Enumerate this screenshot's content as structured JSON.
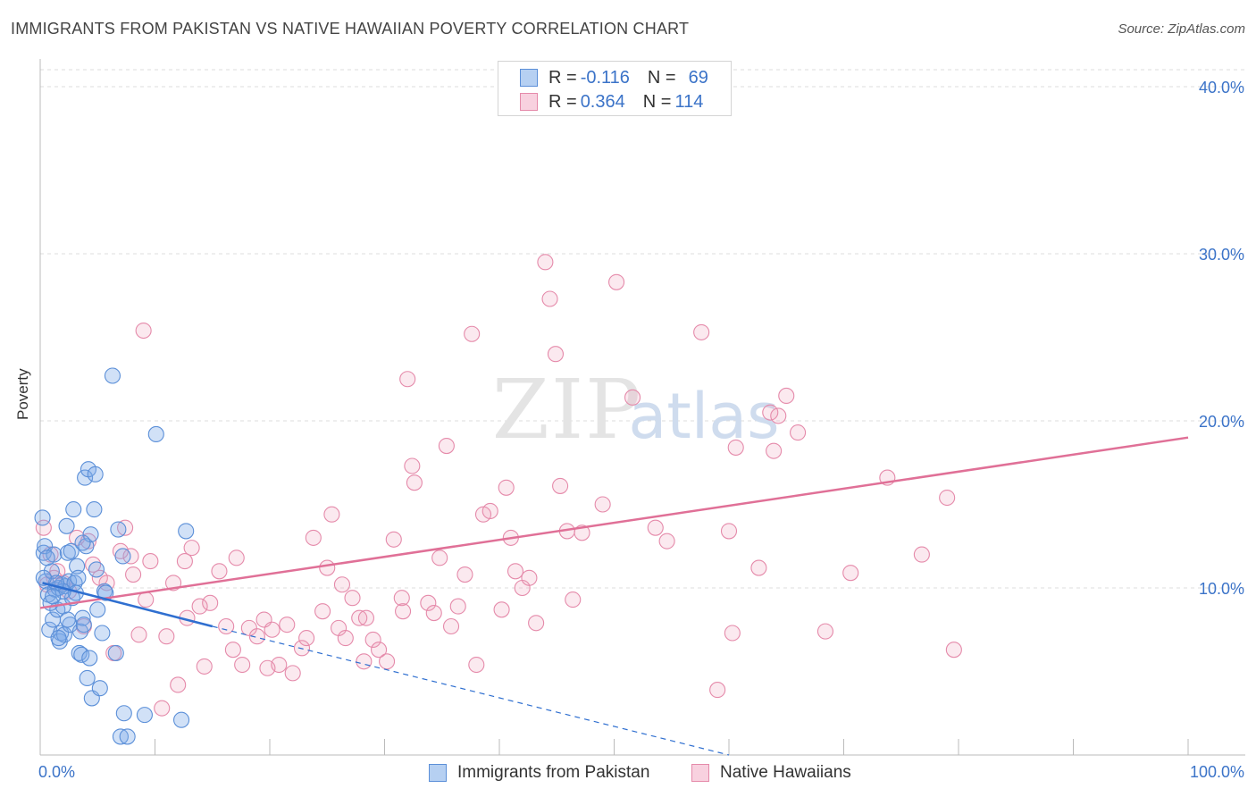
{
  "header": {
    "title": "IMMIGRANTS FROM PAKISTAN VS NATIVE HAWAIIAN POVERTY CORRELATION CHART",
    "source": "Source: ZipAtlas.com"
  },
  "watermark": {
    "zip": "ZIP",
    "atlas": "atlas"
  },
  "legend": {
    "series1": {
      "r_label": "R =",
      "r_value": "-0.116",
      "n_label": "N =",
      "n_value": "69",
      "color": "#7aaae8"
    },
    "series2": {
      "r_label": "R =",
      "r_value": "0.364",
      "n_label": "N =",
      "n_value": "114",
      "color": "#ef9ab8"
    }
  },
  "bottom_legend": {
    "series1_label": "Immigrants from Pakistan",
    "series2_label": "Native Hawaiians"
  },
  "colors": {
    "blue_fill": "rgba(122,170,232,0.35)",
    "blue_stroke": "#5b8fd8",
    "blue_line": "#2f6fd0",
    "pink_fill": "rgba(239,154,184,0.22)",
    "pink_stroke": "#e58aaa",
    "pink_line": "#e07097",
    "axis_text": "#3b73c8",
    "grid": "#dddddd"
  },
  "chart_data": {
    "type": "scatter",
    "title": "IMMIGRANTS FROM PAKISTAN VS NATIVE HAWAIIAN POVERTY CORRELATION CHART",
    "xlabel": "",
    "ylabel": "Poverty",
    "xlim": [
      0,
      100
    ],
    "ylim": [
      0,
      40
    ],
    "x_tick_labels": [
      "0.0%",
      "100.0%"
    ],
    "y_ticks": [
      10,
      20,
      30,
      40
    ],
    "y_tick_labels": [
      "10.0%",
      "20.0%",
      "30.0%",
      "40.0%"
    ],
    "grid": true,
    "series": [
      {
        "name": "Immigrants from Pakistan",
        "r": -0.116,
        "n": 69,
        "trend": {
          "x0": 0.2,
          "y0": 10.3,
          "x1": 15,
          "y1": 7.7,
          "dash_to_x": 60,
          "dash_to_y": 0
        },
        "points": [
          [
            0.2,
            14.2
          ],
          [
            0.3,
            12.1
          ],
          [
            0.4,
            12.5
          ],
          [
            0.5,
            10.4
          ],
          [
            0.7,
            9.6
          ],
          [
            0.8,
            7.5
          ],
          [
            1.0,
            11.0
          ],
          [
            1.1,
            8.1
          ],
          [
            1.2,
            12.0
          ],
          [
            1.3,
            9.9
          ],
          [
            1.5,
            8.7
          ],
          [
            1.6,
            10.0
          ],
          [
            1.7,
            6.8
          ],
          [
            1.8,
            7.3
          ],
          [
            1.9,
            10.2
          ],
          [
            2.0,
            8.9
          ],
          [
            2.1,
            7.2
          ],
          [
            2.2,
            10.1
          ],
          [
            2.3,
            13.7
          ],
          [
            2.4,
            12.1
          ],
          [
            2.5,
            10.4
          ],
          [
            2.6,
            7.8
          ],
          [
            2.7,
            12.2
          ],
          [
            2.8,
            9.4
          ],
          [
            2.9,
            14.7
          ],
          [
            3.0,
            10.3
          ],
          [
            3.2,
            11.3
          ],
          [
            3.3,
            10.6
          ],
          [
            3.4,
            6.1
          ],
          [
            3.5,
            7.4
          ],
          [
            3.6,
            6.0
          ],
          [
            3.7,
            8.2
          ],
          [
            3.8,
            7.8
          ],
          [
            3.9,
            16.6
          ],
          [
            4.0,
            12.5
          ],
          [
            4.1,
            4.6
          ],
          [
            4.2,
            17.1
          ],
          [
            4.3,
            5.8
          ],
          [
            4.4,
            13.2
          ],
          [
            4.5,
            3.4
          ],
          [
            4.7,
            14.7
          ],
          [
            4.8,
            16.8
          ],
          [
            5.0,
            8.7
          ],
          [
            5.2,
            4.0
          ],
          [
            5.4,
            7.3
          ],
          [
            5.6,
            9.8
          ],
          [
            6.3,
            22.7
          ],
          [
            6.6,
            6.1
          ],
          [
            6.8,
            13.5
          ],
          [
            7.0,
            1.1
          ],
          [
            7.3,
            2.5
          ],
          [
            7.6,
            1.1
          ],
          [
            9.1,
            2.4
          ],
          [
            10.1,
            19.2
          ],
          [
            12.7,
            13.4
          ],
          [
            12.3,
            2.1
          ],
          [
            7.2,
            11.9
          ],
          [
            3.1,
            9.7
          ],
          [
            2.0,
            9.8
          ],
          [
            1.4,
            10.3
          ],
          [
            0.9,
            9.1
          ],
          [
            0.6,
            11.8
          ],
          [
            1.1,
            9.5
          ],
          [
            2.4,
            8.1
          ],
          [
            3.7,
            12.7
          ],
          [
            4.9,
            11.1
          ],
          [
            5.7,
            9.7
          ],
          [
            0.3,
            10.6
          ],
          [
            1.6,
            7.0
          ]
        ]
      },
      {
        "name": "Native Hawaiians",
        "r": 0.364,
        "n": 114,
        "trend": {
          "x0": 0,
          "y0": 8.8,
          "x1": 100,
          "y1": 19.0
        },
        "points": [
          [
            0.3,
            13.6
          ],
          [
            0.6,
            10.2
          ],
          [
            0.9,
            12.0
          ],
          [
            1.2,
            10.6
          ],
          [
            1.5,
            11.0
          ],
          [
            2.0,
            10.3
          ],
          [
            2.5,
            9.8
          ],
          [
            3.2,
            13.0
          ],
          [
            3.8,
            7.7
          ],
          [
            4.2,
            12.8
          ],
          [
            4.6,
            11.4
          ],
          [
            5.2,
            10.6
          ],
          [
            5.8,
            10.3
          ],
          [
            6.4,
            6.1
          ],
          [
            7.0,
            12.2
          ],
          [
            7.4,
            13.6
          ],
          [
            7.9,
            11.9
          ],
          [
            8.1,
            10.8
          ],
          [
            8.6,
            7.2
          ],
          [
            9.2,
            9.3
          ],
          [
            9.6,
            11.6
          ],
          [
            9.0,
            25.4
          ],
          [
            10.6,
            2.8
          ],
          [
            11.0,
            7.1
          ],
          [
            11.6,
            10.3
          ],
          [
            12.0,
            4.2
          ],
          [
            12.6,
            11.6
          ],
          [
            12.8,
            8.2
          ],
          [
            13.2,
            12.4
          ],
          [
            13.9,
            8.9
          ],
          [
            14.3,
            5.3
          ],
          [
            14.8,
            9.1
          ],
          [
            15.6,
            11.0
          ],
          [
            16.2,
            7.7
          ],
          [
            16.8,
            6.3
          ],
          [
            17.1,
            11.8
          ],
          [
            17.6,
            5.4
          ],
          [
            18.2,
            7.6
          ],
          [
            18.9,
            7.1
          ],
          [
            19.5,
            8.1
          ],
          [
            19.8,
            5.2
          ],
          [
            20.2,
            7.5
          ],
          [
            20.8,
            5.4
          ],
          [
            21.5,
            7.8
          ],
          [
            22.0,
            4.9
          ],
          [
            22.8,
            6.4
          ],
          [
            23.2,
            7.0
          ],
          [
            23.8,
            13.0
          ],
          [
            24.6,
            8.6
          ],
          [
            25.0,
            11.2
          ],
          [
            25.4,
            14.4
          ],
          [
            26.0,
            7.6
          ],
          [
            26.3,
            10.2
          ],
          [
            26.6,
            7.0
          ],
          [
            27.2,
            9.4
          ],
          [
            27.8,
            8.2
          ],
          [
            28.2,
            5.6
          ],
          [
            28.4,
            8.2
          ],
          [
            29.0,
            6.9
          ],
          [
            29.5,
            6.3
          ],
          [
            30.2,
            5.6
          ],
          [
            30.8,
            12.9
          ],
          [
            31.5,
            9.4
          ],
          [
            31.6,
            8.6
          ],
          [
            32.0,
            22.5
          ],
          [
            32.4,
            17.3
          ],
          [
            32.6,
            16.3
          ],
          [
            33.8,
            9.1
          ],
          [
            34.3,
            8.5
          ],
          [
            34.8,
            11.8
          ],
          [
            35.4,
            18.5
          ],
          [
            35.8,
            7.7
          ],
          [
            36.4,
            8.9
          ],
          [
            37.0,
            10.8
          ],
          [
            37.6,
            25.2
          ],
          [
            38.0,
            5.4
          ],
          [
            38.6,
            14.4
          ],
          [
            39.2,
            14.6
          ],
          [
            40.2,
            8.7
          ],
          [
            40.6,
            16.0
          ],
          [
            41.0,
            13.0
          ],
          [
            41.4,
            11.0
          ],
          [
            42.0,
            10.0
          ],
          [
            42.6,
            10.6
          ],
          [
            43.2,
            7.9
          ],
          [
            44.0,
            29.5
          ],
          [
            44.4,
            27.3
          ],
          [
            44.9,
            24.0
          ],
          [
            45.3,
            16.1
          ],
          [
            45.9,
            13.4
          ],
          [
            46.4,
            9.3
          ],
          [
            47.2,
            13.3
          ],
          [
            49.0,
            15.0
          ],
          [
            50.2,
            28.3
          ],
          [
            51.6,
            21.4
          ],
          [
            53.6,
            13.6
          ],
          [
            54.6,
            12.8
          ],
          [
            57.6,
            25.3
          ],
          [
            59.0,
            3.9
          ],
          [
            60.0,
            13.4
          ],
          [
            60.3,
            7.3
          ],
          [
            60.6,
            18.4
          ],
          [
            62.6,
            11.2
          ],
          [
            63.6,
            20.5
          ],
          [
            63.9,
            18.2
          ],
          [
            64.3,
            20.3
          ],
          [
            65.0,
            21.5
          ],
          [
            66.0,
            19.3
          ],
          [
            68.4,
            7.4
          ],
          [
            70.6,
            10.9
          ],
          [
            73.8,
            16.6
          ],
          [
            76.8,
            12.0
          ],
          [
            79.0,
            15.4
          ],
          [
            79.6,
            6.3
          ]
        ]
      }
    ]
  }
}
